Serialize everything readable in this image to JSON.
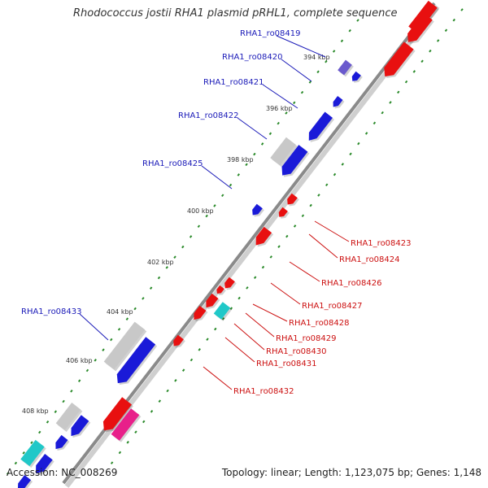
{
  "title": "Rhodococcus jostii RHA1 plasmid pRHL1, complete sequence",
  "accession_text": "Accession: NC_008269",
  "topology_text": "Topology: linear; Length: 1,123,075 bp; Genes: 1,148",
  "colors": {
    "backbone": "#8a8a8a",
    "tick": "#2a8a2a",
    "gene_blue": "#1a1ad8",
    "gene_red": "#e81010",
    "gene_grey": "#c8c8c8",
    "gene_purple": "#6a5acd",
    "gene_cyan": "#20c8c8",
    "gene_magenta": "#e8208a",
    "label_blue": "#1a1ab8",
    "label_red": "#cc1010"
  },
  "kbp_labels": [
    "394 kbp",
    "396 kbp",
    "398 kbp",
    "400 kbp",
    "402 kbp",
    "404 kbp",
    "406 kbp",
    "408 kbp"
  ],
  "upper_gene_labels": [
    "RHA1_ro08419",
    "RHA1_ro08420",
    "RHA1_ro08421",
    "RHA1_ro08422",
    "RHA1_ro08425",
    "RHA1_ro08433"
  ],
  "lower_gene_labels": [
    "RHA1_ro08423",
    "RHA1_ro08424",
    "RHA1_ro08426",
    "RHA1_ro08427",
    "RHA1_ro08428",
    "RHA1_ro08429",
    "RHA1_ro08430",
    "RHA1_ro08431",
    "RHA1_ro08432"
  ]
}
